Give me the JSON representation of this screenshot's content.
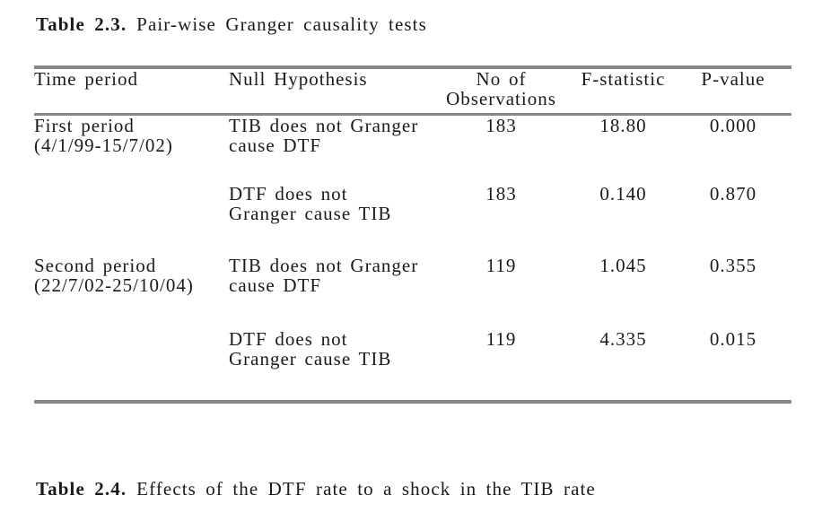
{
  "colors": {
    "text": "#1a1a1a",
    "rule": "#878787",
    "background": "#ffffff"
  },
  "caption_23": {
    "label": "Table 2.3.",
    "title": "Pair-wise Granger causality tests"
  },
  "granger_table": {
    "headers": {
      "time_period": "Time period",
      "null_hypothesis": "Null Hypothesis",
      "observations": "No of\nObservations",
      "f_statistic": "F-statistic",
      "p_value": "P-value"
    },
    "rows": [
      {
        "time_period": "First period\n(4/1/99-15/7/02)",
        "null_hypothesis": "TIB does not Granger\ncause DTF",
        "observations": "183",
        "f_statistic": "18.80",
        "p_value": "0.000"
      },
      {
        "time_period": "",
        "null_hypothesis": "DTF does not\nGranger cause TIB",
        "observations": "183",
        "f_statistic": "0.140",
        "p_value": "0.870"
      },
      {
        "time_period": "Second period\n(22/7/02-25/10/04)",
        "null_hypothesis": "TIB does not Granger\ncause DTF",
        "observations": "119",
        "f_statistic": "1.045",
        "p_value": "0.355"
      },
      {
        "time_period": "",
        "null_hypothesis": "DTF does not\nGranger cause TIB",
        "observations": "119",
        "f_statistic": "4.335",
        "p_value": "0.015"
      }
    ]
  },
  "caption_24": {
    "label": "Table 2.4.",
    "title": "Effects of the DTF rate to a shock in the TIB rate"
  }
}
